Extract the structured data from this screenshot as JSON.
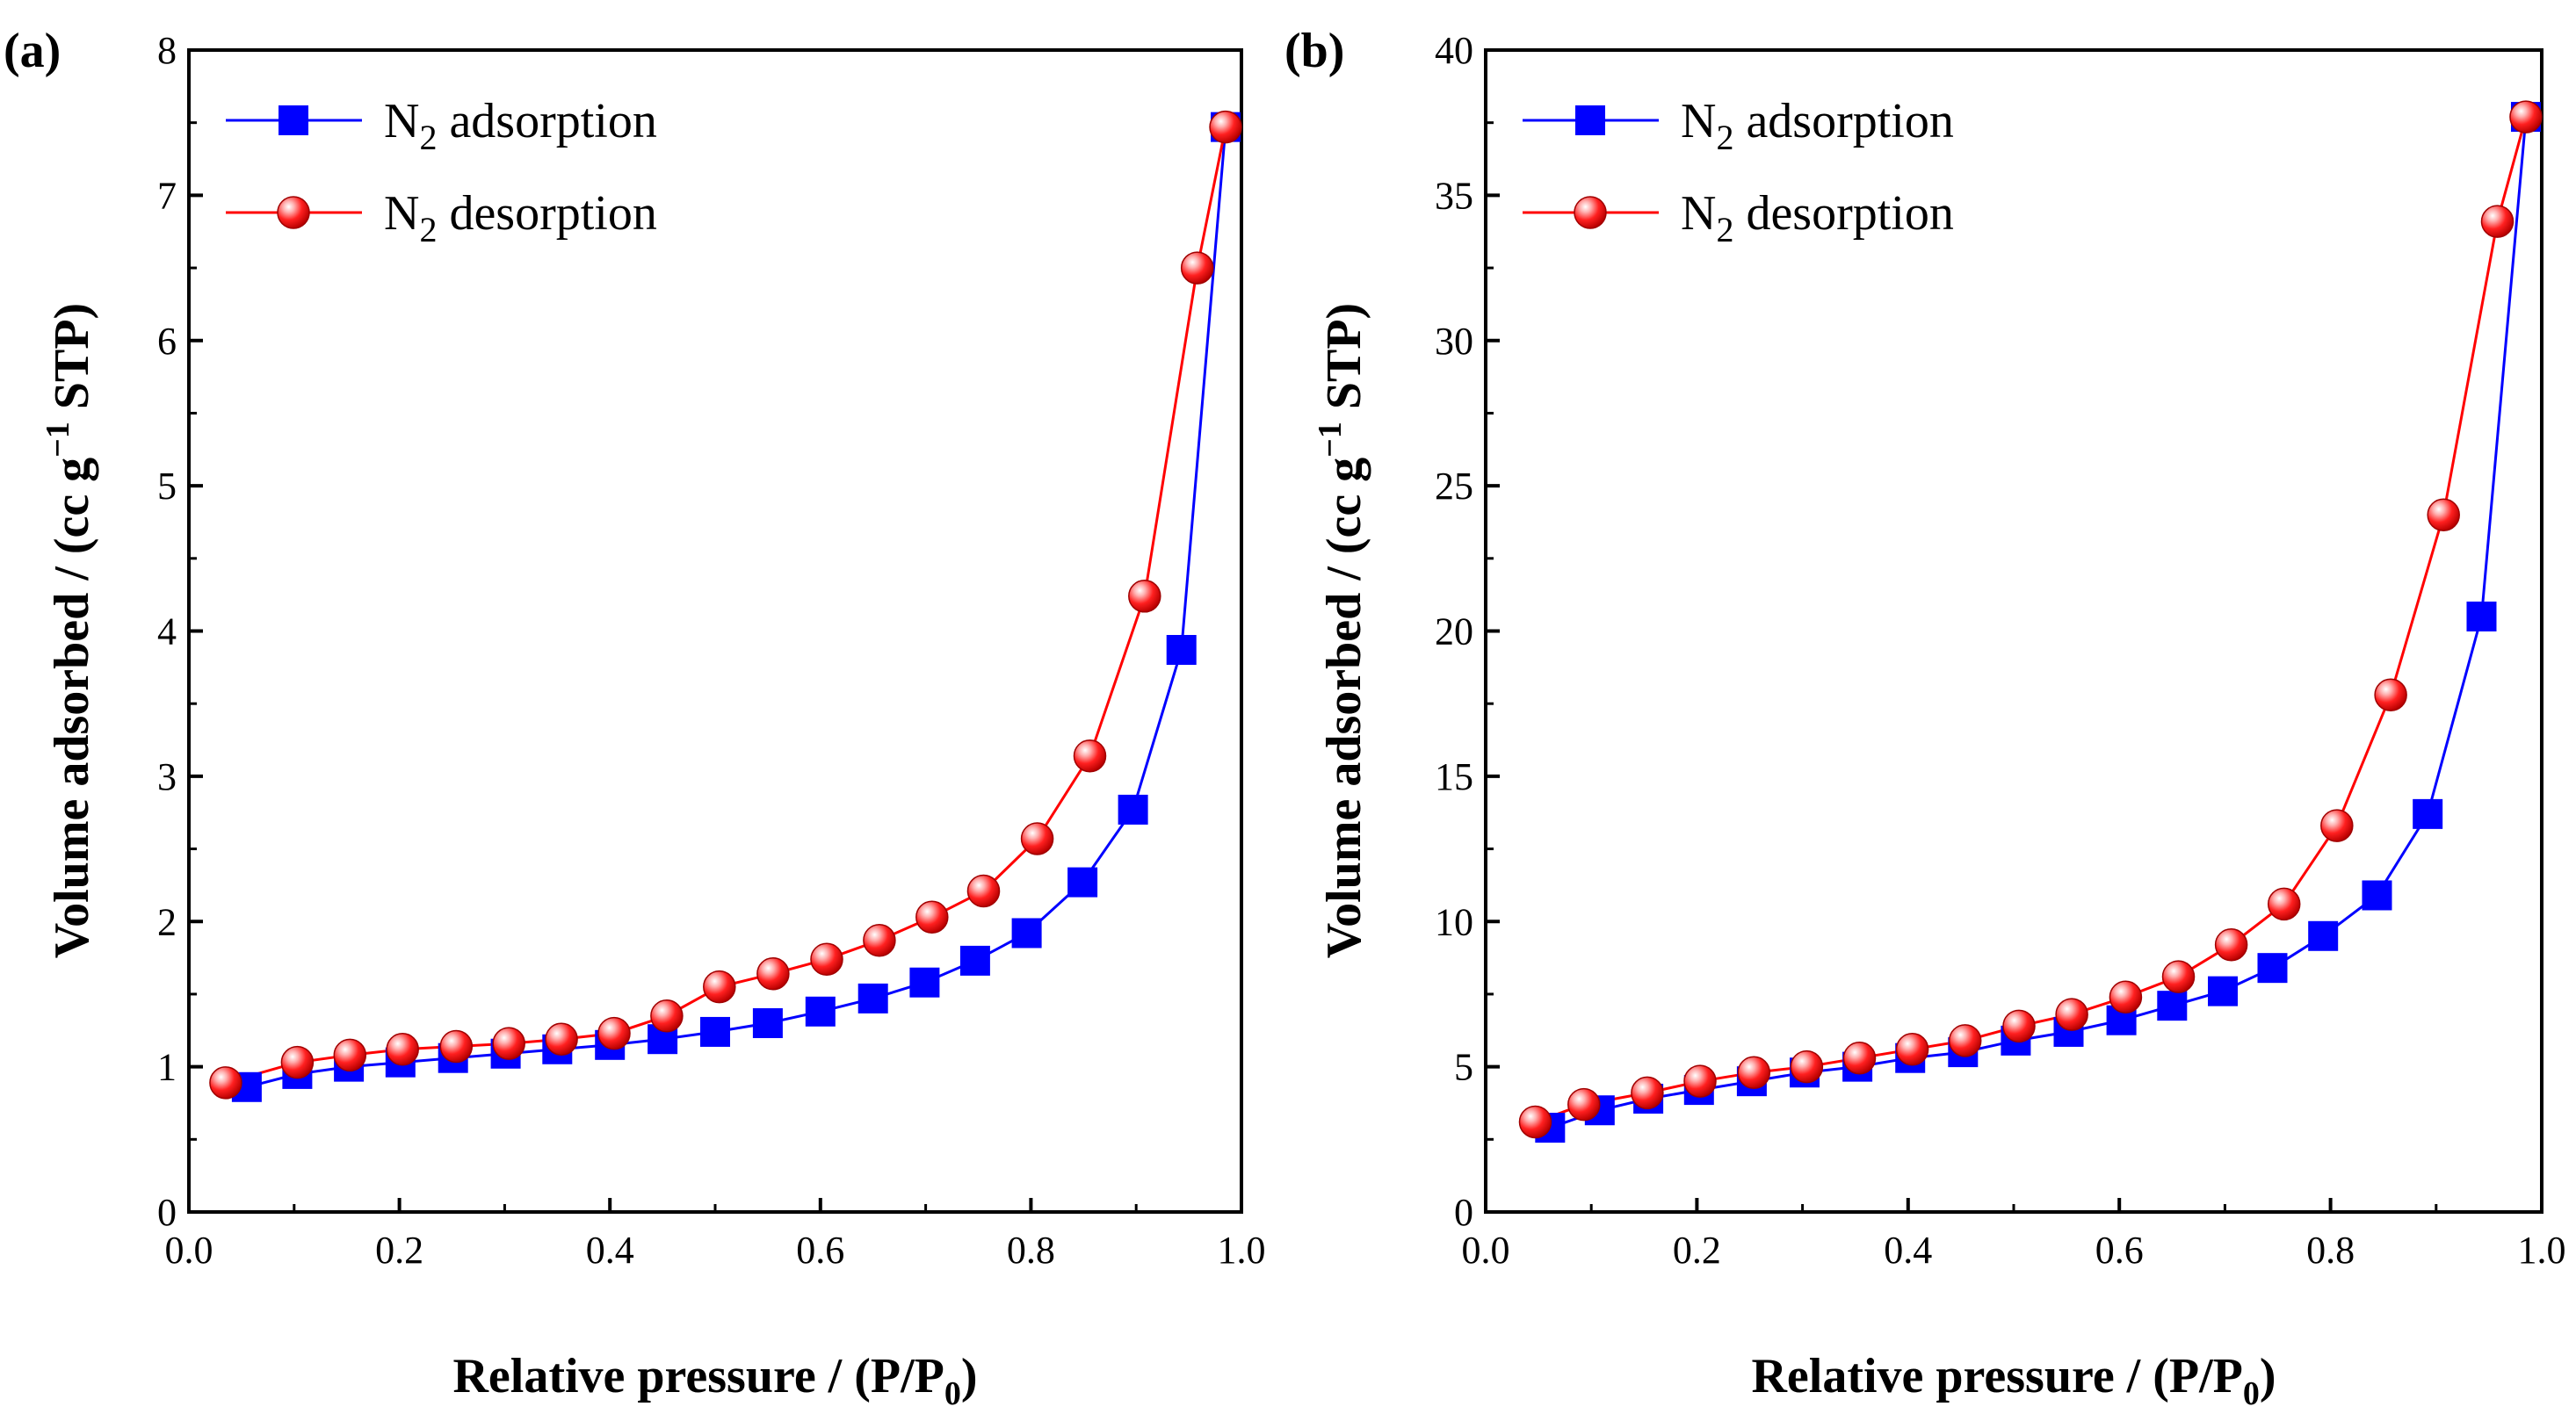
{
  "chart_data": [
    {
      "panel_label": "(a)",
      "type": "line",
      "xlabel": "Relative pressure / (P/P0)",
      "ylabel": "Volume adsorbed / (cc g−1 STP)",
      "xlim": [
        0.0,
        1.0
      ],
      "ylim": [
        0,
        8
      ],
      "xticks": [
        "0.0",
        "0.2",
        "0.4",
        "0.6",
        "0.8",
        "1.0"
      ],
      "yticks": [
        "0",
        "1",
        "2",
        "3",
        "4",
        "5",
        "6",
        "7",
        "8"
      ],
      "grid": false,
      "legend_position": "top-left",
      "series": [
        {
          "name": "N2 adsorption",
          "color": "#0000ff",
          "marker": "square",
          "x": [
            0.055,
            0.103,
            0.152,
            0.201,
            0.251,
            0.301,
            0.35,
            0.4,
            0.45,
            0.5,
            0.55,
            0.6,
            0.65,
            0.699,
            0.747,
            0.796,
            0.849,
            0.897,
            0.943,
            0.985
          ],
          "y": [
            0.86,
            0.95,
            1.0,
            1.03,
            1.06,
            1.09,
            1.12,
            1.15,
            1.19,
            1.24,
            1.3,
            1.38,
            1.47,
            1.58,
            1.73,
            1.92,
            2.27,
            2.77,
            3.87,
            7.47
          ]
        },
        {
          "name": "N2 desorption",
          "color": "#ff0000",
          "marker": "circle",
          "x": [
            0.985,
            0.958,
            0.908,
            0.856,
            0.806,
            0.755,
            0.706,
            0.656,
            0.606,
            0.555,
            0.504,
            0.454,
            0.404,
            0.354,
            0.304,
            0.254,
            0.203,
            0.153,
            0.103,
            0.035
          ],
          "y": [
            7.47,
            6.5,
            4.24,
            3.14,
            2.57,
            2.21,
            2.03,
            1.87,
            1.74,
            1.64,
            1.55,
            1.35,
            1.23,
            1.19,
            1.16,
            1.14,
            1.12,
            1.08,
            1.03,
            0.89
          ]
        }
      ]
    },
    {
      "panel_label": "(b)",
      "type": "line",
      "xlabel": "Relative pressure / (P/P0)",
      "ylabel": "Volume adsorbed / (cc g−1 STP)",
      "xlim": [
        0.0,
        1.0
      ],
      "ylim": [
        0,
        40
      ],
      "xticks": [
        "0.0",
        "0.2",
        "0.4",
        "0.6",
        "0.8",
        "1.0"
      ],
      "yticks": [
        "0",
        "5",
        "10",
        "15",
        "20",
        "25",
        "30",
        "35",
        "40"
      ],
      "grid": false,
      "legend_position": "top-left",
      "series": [
        {
          "name": "N2 adsorption",
          "color": "#0000ff",
          "marker": "square",
          "x": [
            0.061,
            0.108,
            0.154,
            0.202,
            0.252,
            0.302,
            0.352,
            0.402,
            0.452,
            0.502,
            0.552,
            0.602,
            0.65,
            0.698,
            0.745,
            0.793,
            0.844,
            0.892,
            0.943,
            0.985
          ],
          "y": [
            2.9,
            3.5,
            3.9,
            4.2,
            4.5,
            4.8,
            5.0,
            5.3,
            5.5,
            5.9,
            6.2,
            6.6,
            7.1,
            7.6,
            8.4,
            9.5,
            10.9,
            13.7,
            20.5,
            37.7
          ]
        },
        {
          "name": "N2 desorption",
          "color": "#ff0000",
          "marker": "circle",
          "x": [
            0.985,
            0.958,
            0.907,
            0.857,
            0.806,
            0.756,
            0.706,
            0.656,
            0.606,
            0.555,
            0.505,
            0.454,
            0.404,
            0.354,
            0.304,
            0.254,
            0.203,
            0.153,
            0.093,
            0.047
          ],
          "y": [
            37.7,
            34.1,
            24.0,
            17.8,
            13.3,
            10.6,
            9.2,
            8.1,
            7.4,
            6.8,
            6.4,
            5.9,
            5.6,
            5.3,
            5.0,
            4.8,
            4.5,
            4.1,
            3.7,
            3.1
          ]
        }
      ]
    }
  ]
}
